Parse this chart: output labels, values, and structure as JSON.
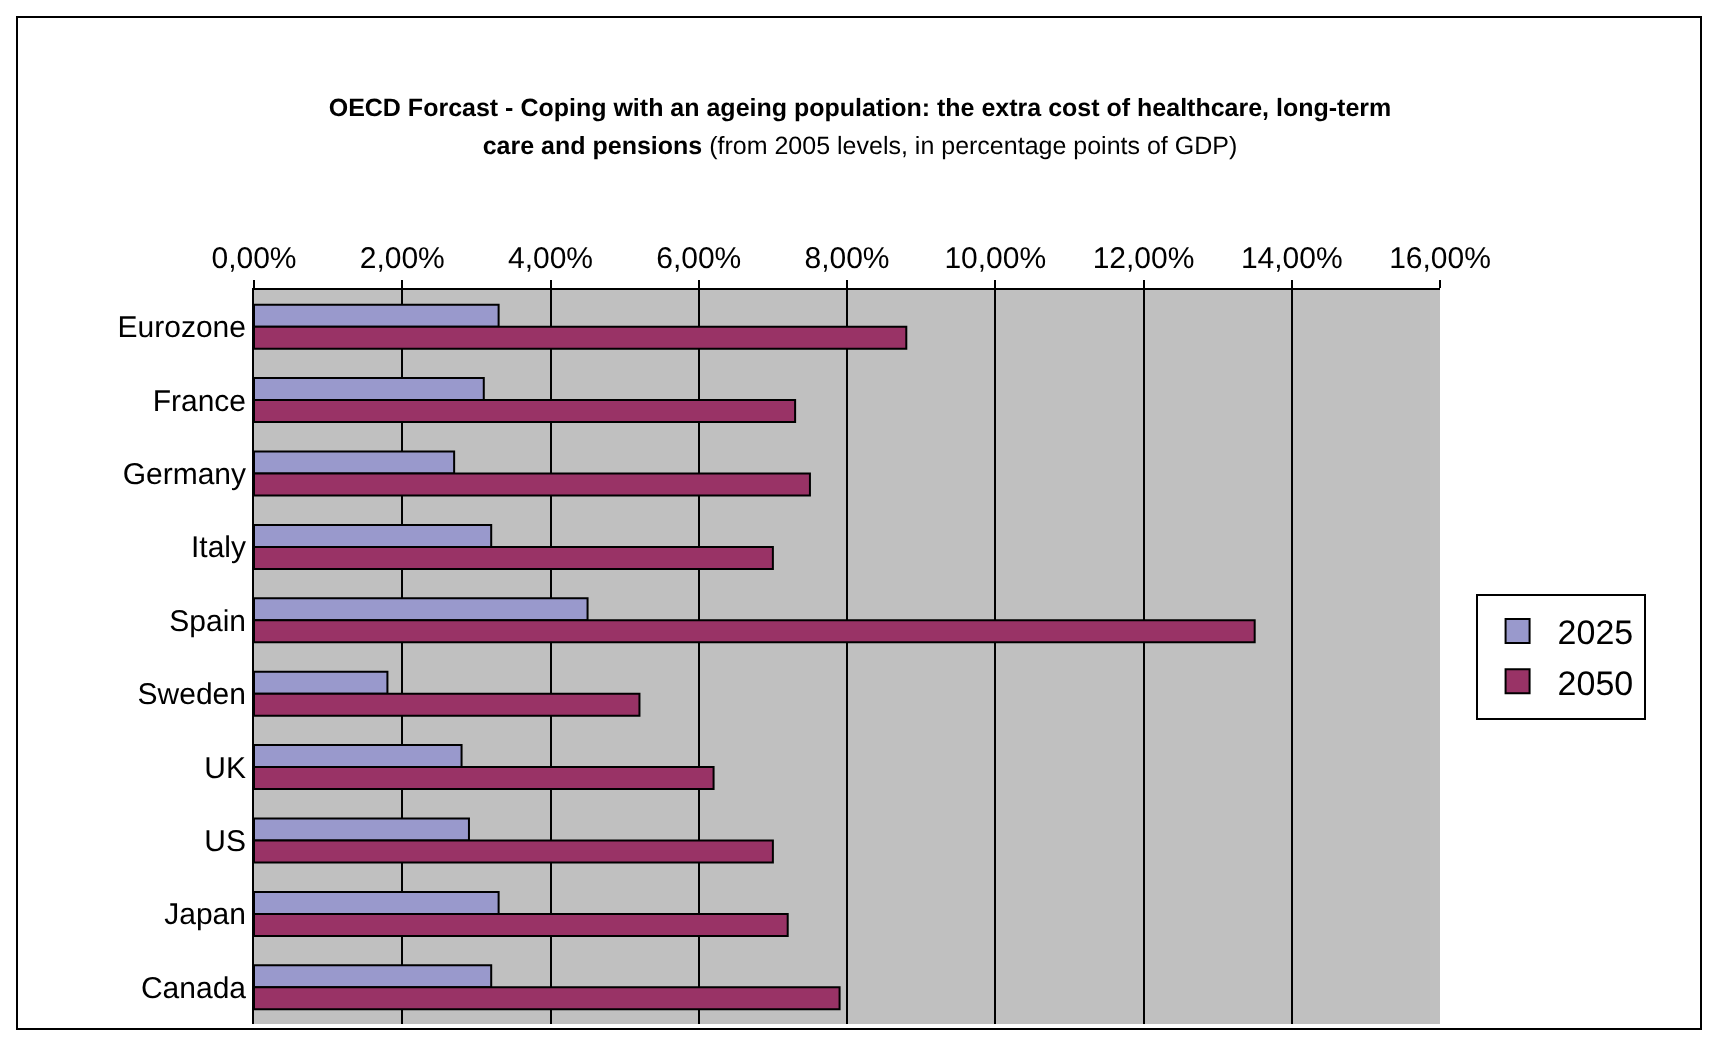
{
  "chart_data": {
    "type": "bar",
    "orientation": "horizontal",
    "title": "OECD Forcast - Coping with an ageing population: the extra cost of healthcare, long-term care and pensions",
    "subtitle": "(from 2005 levels, in percentage points of GDP)",
    "categories": [
      "Eurozone",
      "France",
      "Germany",
      "Italy",
      "Spain",
      "Sweden",
      "UK",
      "US",
      "Japan",
      "Canada"
    ],
    "series": [
      {
        "name": "2025",
        "color": "#9999cc",
        "values": [
          3.3,
          3.1,
          2.7,
          3.2,
          4.5,
          1.8,
          2.8,
          2.9,
          3.3,
          3.2
        ]
      },
      {
        "name": "2050",
        "color": "#993366",
        "values": [
          8.8,
          7.3,
          7.5,
          7.0,
          13.5,
          5.2,
          6.2,
          7.0,
          7.2,
          7.9
        ]
      }
    ],
    "xlim": [
      0,
      16
    ],
    "xticks": [
      {
        "value": 0,
        "label": "0,00%"
      },
      {
        "value": 2,
        "label": "2,00%"
      },
      {
        "value": 4,
        "label": "4,00%"
      },
      {
        "value": 6,
        "label": "6,00%"
      },
      {
        "value": 8,
        "label": "8,00%"
      },
      {
        "value": 10,
        "label": "10,00%"
      },
      {
        "value": 12,
        "label": "12,00%"
      },
      {
        "value": 14,
        "label": "14,00%"
      },
      {
        "value": 16,
        "label": "16,00%"
      }
    ],
    "grid": "x",
    "legend": "right"
  }
}
